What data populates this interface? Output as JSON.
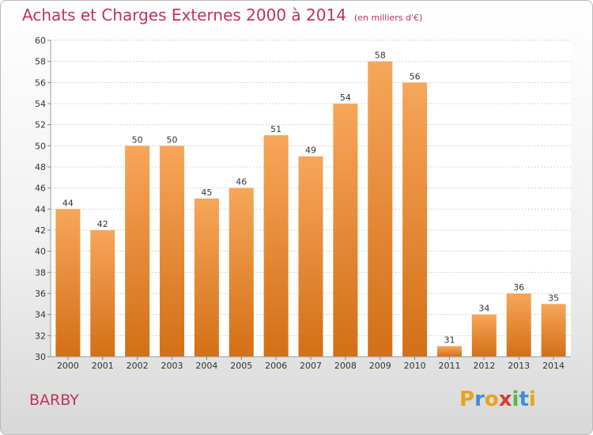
{
  "header": {
    "title": "Achats et Charges Externes 2000 à 2014",
    "unit": "(en milliers d'€)"
  },
  "footer": {
    "place": "BARBY",
    "brand_letters": [
      "P",
      "r",
      "o",
      "x",
      "i",
      "t",
      "i"
    ],
    "brand_colors": [
      "#e8a21c",
      "#3d8fd6",
      "#e8a21c",
      "#d63b3b",
      "#59b64b",
      "#3d8fd6",
      "#e8a21c"
    ]
  },
  "colors": {
    "accent": "#c2315a",
    "bar_top": "#f7a65a",
    "bar_bottom": "#d36f16"
  },
  "chart_data": {
    "type": "bar",
    "title": "Achats et Charges Externes 2000 à 2014",
    "subtitle": "(en milliers d'€)",
    "xlabel": "",
    "ylabel": "",
    "categories": [
      "2000",
      "2001",
      "2002",
      "2003",
      "2004",
      "2005",
      "2006",
      "2007",
      "2008",
      "2009",
      "2010",
      "2011",
      "2012",
      "2013",
      "2014"
    ],
    "values": [
      44,
      42,
      50,
      50,
      45,
      46,
      51,
      49,
      54,
      58,
      56,
      31,
      34,
      36,
      35
    ],
    "ylim": [
      30,
      60
    ],
    "yticks": [
      30,
      32,
      34,
      36,
      38,
      40,
      42,
      44,
      46,
      48,
      50,
      52,
      54,
      56,
      58,
      60
    ],
    "grid": true,
    "legend": "none"
  }
}
